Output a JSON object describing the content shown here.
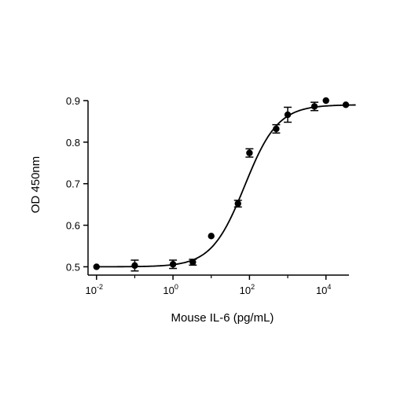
{
  "chart_data": {
    "type": "scatter",
    "title": "",
    "xlabel": "Mouse IL-6 (pg/mL)",
    "ylabel": "OD 450nm",
    "x_scale": "log10",
    "xlim": [
      0.006,
      40000
    ],
    "ylim": [
      0.48,
      0.9
    ],
    "x_ticks": [
      {
        "value": 0.01,
        "base": "10",
        "exp": "-2"
      },
      {
        "value": 1,
        "base": "10",
        "exp": "0"
      },
      {
        "value": 100,
        "base": "10",
        "exp": "2"
      },
      {
        "value": 10000,
        "base": "10",
        "exp": "4"
      }
    ],
    "y_ticks": [
      {
        "value": 0.5,
        "label": "0.5"
      },
      {
        "value": 0.6,
        "label": "0.6"
      },
      {
        "value": 0.7,
        "label": "0.7"
      },
      {
        "value": 0.8,
        "label": "0.8"
      },
      {
        "value": 0.9,
        "label": "0.9"
      }
    ],
    "grid": false,
    "series": [
      {
        "color": "#000000",
        "points": [
          {
            "x": 0.01,
            "y": 0.5,
            "err": 0
          },
          {
            "x": 0.1,
            "y": 0.503,
            "err": 0.013
          },
          {
            "x": 1,
            "y": 0.506,
            "err": 0.01
          },
          {
            "x": 3.3,
            "y": 0.511,
            "err": 0.007
          },
          {
            "x": 10,
            "y": 0.574,
            "err": 0
          },
          {
            "x": 50,
            "y": 0.652,
            "err": 0.008
          },
          {
            "x": 100,
            "y": 0.774,
            "err": 0.01
          },
          {
            "x": 500,
            "y": 0.832,
            "err": 0.01
          },
          {
            "x": 1000,
            "y": 0.866,
            "err": 0.018
          },
          {
            "x": 5000,
            "y": 0.886,
            "err": 0.01
          },
          {
            "x": 10000,
            "y": 0.9,
            "err": 0
          },
          {
            "x": 60000,
            "y": 0.89,
            "err": 0
          }
        ],
        "fit": {
          "model": "4PL",
          "bottom": 0.5,
          "top": 0.89,
          "ec50": 75,
          "hill": 1.0
        }
      }
    ]
  }
}
